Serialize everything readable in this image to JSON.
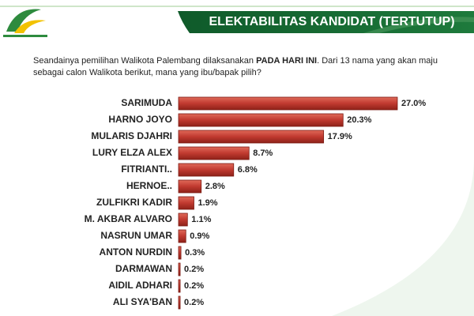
{
  "chart_data": {
    "type": "bar",
    "orientation": "horizontal",
    "title": "ELEKTABILITAS KANDIDAT (TERTUTUP)",
    "subtitle": [
      "Seandainya pemilihan Walikota Palembang dilaksanakan ",
      "PADA HARI INI",
      ". Dari 13 nama yang akan maju sebagai calon Walikota berikut, mana yang ibu/bapak pilih?"
    ],
    "categories": [
      "SARIMUDA",
      "HARNO JOYO",
      "MULARIS DJAHRI",
      "LURY ELZA ALEX",
      "FITRIANTI..",
      "HERNOE..",
      "ZULFIKRI KADIR",
      "M. AKBAR ALVARO",
      "NASRUN UMAR",
      "ANTON NURDIN",
      "DARMAWAN",
      "AIDIL ADHARI",
      "ALI SYA'BAN"
    ],
    "values": [
      27.0,
      20.3,
      17.9,
      8.7,
      6.8,
      2.8,
      1.9,
      1.1,
      0.9,
      0.3,
      0.2,
      0.2,
      0.2
    ],
    "value_labels": [
      "27.0%",
      "20.3%",
      "17.9%",
      "8.7%",
      "6.8%",
      "2.8%",
      "1.9%",
      "1.1%",
      "0.9%",
      "0.3%",
      "0.2%",
      "0.2%",
      "0.2%"
    ],
    "color": "#c0392f"
  }
}
